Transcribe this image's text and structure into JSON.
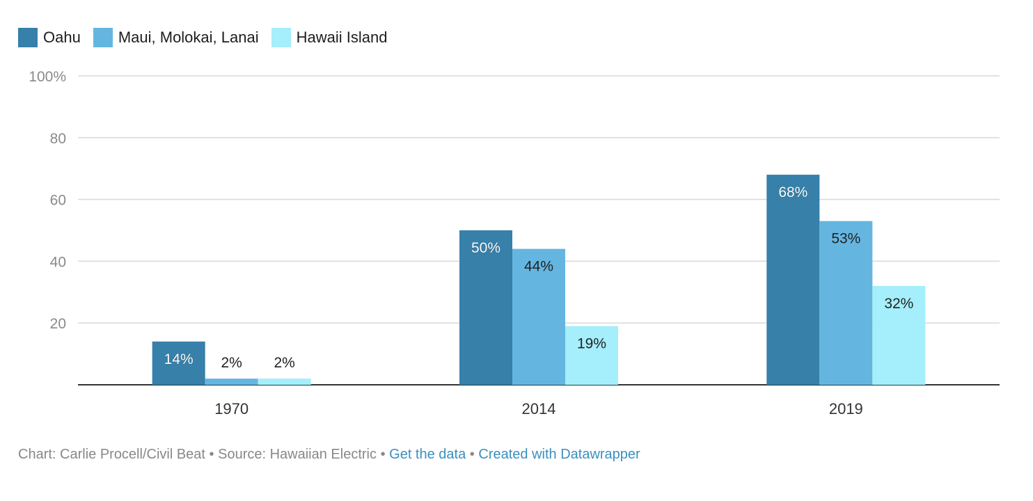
{
  "chart_data": {
    "type": "bar",
    "categories": [
      "1970",
      "2014",
      "2019"
    ],
    "series": [
      {
        "name": "Oahu",
        "values": [
          14,
          50,
          68
        ],
        "labels": [
          "14%",
          "50%",
          "68%"
        ],
        "color": "#3680aa"
      },
      {
        "name": "Maui, Molokai, Lanai",
        "values": [
          2,
          44,
          53
        ],
        "labels": [
          "2%",
          "44%",
          "53%"
        ],
        "color": "#64b6e1"
      },
      {
        "name": "Hawaii Island",
        "values": [
          2,
          19,
          32
        ],
        "labels": [
          "2%",
          "19%",
          "32%"
        ],
        "color": "#a5eefc"
      }
    ],
    "ylim": [
      0,
      100
    ],
    "yticks": [
      20,
      40,
      60,
      80,
      100
    ],
    "ytick_labels": [
      "20",
      "40",
      "60",
      "80",
      "100%"
    ],
    "grid": true,
    "legend_position": "top-left"
  },
  "footer": {
    "credit": "Chart: Carlie Procell/Civil Beat",
    "separator": "•",
    "source": "Source: Hawaiian Electric",
    "get_data": "Get the data",
    "created_with": "Created with Datawrapper"
  }
}
